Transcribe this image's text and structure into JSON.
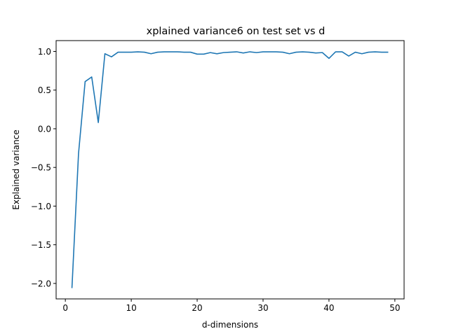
{
  "chart_data": {
    "type": "line",
    "title": "xplained variance6 on  test set vs d",
    "xlabel": "d-dimensions",
    "ylabel": "Explained variance",
    "xlim": [
      -1.4,
      51.4
    ],
    "ylim": [
      -2.2,
      1.14
    ],
    "xticks": [
      0,
      10,
      20,
      30,
      40,
      50
    ],
    "yticks": [
      -2.0,
      -1.5,
      -1.0,
      -0.5,
      0.0,
      0.5,
      1.0
    ],
    "ytick_labels": [
      "−2.0",
      "−1.5",
      "−1.0",
      "−0.5",
      "0.0",
      "0.5",
      "1.0"
    ],
    "grid": false,
    "line_color": "#1f77b4",
    "series": [
      {
        "x": [
          1,
          2,
          3,
          4,
          5,
          6,
          7,
          8,
          9,
          10,
          11,
          12,
          13,
          14,
          15,
          16,
          17,
          18,
          19,
          20,
          21,
          22,
          23,
          24,
          25,
          26,
          27,
          28,
          29,
          30,
          31,
          32,
          33,
          34,
          35,
          36,
          37,
          38,
          39,
          40,
          41,
          42,
          43,
          44,
          45,
          46,
          47,
          48,
          49
        ],
        "values": [
          -2.06,
          -0.32,
          0.61,
          0.67,
          0.08,
          0.97,
          0.93,
          0.99,
          0.99,
          0.99,
          0.995,
          0.99,
          0.97,
          0.99,
          0.995,
          0.995,
          0.995,
          0.99,
          0.99,
          0.965,
          0.965,
          0.985,
          0.97,
          0.985,
          0.99,
          0.995,
          0.98,
          0.995,
          0.985,
          0.995,
          0.995,
          0.995,
          0.99,
          0.97,
          0.99,
          0.995,
          0.99,
          0.98,
          0.985,
          0.91,
          0.995,
          0.995,
          0.94,
          0.99,
          0.97,
          0.99,
          0.995,
          0.99,
          0.99
        ]
      }
    ]
  }
}
